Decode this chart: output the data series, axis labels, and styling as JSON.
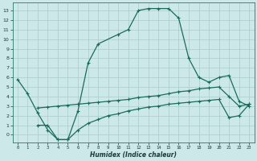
{
  "xlabel": "Humidex (Indice chaleur)",
  "bg_color": "#cce8e8",
  "grid_color": "#aacccc",
  "line_color": "#1a6b5a",
  "xlim": [
    -0.5,
    23.5
  ],
  "ylim": [
    -0.8,
    13.8
  ],
  "xticks": [
    0,
    1,
    2,
    3,
    4,
    5,
    6,
    7,
    8,
    9,
    10,
    11,
    12,
    13,
    14,
    15,
    16,
    17,
    18,
    19,
    20,
    21,
    22,
    23
  ],
  "yticks": [
    0,
    1,
    2,
    3,
    4,
    5,
    6,
    7,
    8,
    9,
    10,
    11,
    12,
    13
  ],
  "line1_x": [
    0,
    1,
    2,
    3,
    4,
    5,
    6,
    7,
    8,
    10,
    11,
    12,
    13,
    14,
    15,
    16,
    17,
    18,
    19,
    20,
    21,
    22,
    23
  ],
  "line1_y": [
    5.8,
    4.3,
    2.3,
    0.5,
    -0.5,
    -0.5,
    2.5,
    7.5,
    9.5,
    10.5,
    11.0,
    13.0,
    13.2,
    13.2,
    13.2,
    12.2,
    8.0,
    6.0,
    5.5,
    6.0,
    6.2,
    3.5,
    3.0
  ],
  "line2_x": [
    2,
    3,
    4,
    5,
    6,
    7,
    8,
    9,
    10,
    11,
    12,
    13,
    14,
    15,
    16,
    17,
    18,
    19,
    20,
    21,
    22,
    23
  ],
  "line2_y": [
    2.8,
    2.9,
    3.0,
    3.1,
    3.2,
    3.3,
    3.4,
    3.5,
    3.6,
    3.7,
    3.9,
    4.0,
    4.1,
    4.3,
    4.5,
    4.6,
    4.8,
    4.9,
    5.0,
    4.0,
    3.0,
    3.2
  ],
  "line3_x": [
    2,
    3,
    4,
    5,
    6,
    7,
    8,
    9,
    10,
    11,
    12,
    13,
    14,
    15,
    16,
    17,
    18,
    19,
    20,
    21,
    22,
    23
  ],
  "line3_y": [
    1.0,
    1.0,
    -0.5,
    -0.5,
    0.5,
    1.2,
    1.6,
    2.0,
    2.2,
    2.5,
    2.7,
    2.9,
    3.0,
    3.2,
    3.3,
    3.4,
    3.5,
    3.6,
    3.7,
    1.8,
    2.0,
    3.2
  ]
}
